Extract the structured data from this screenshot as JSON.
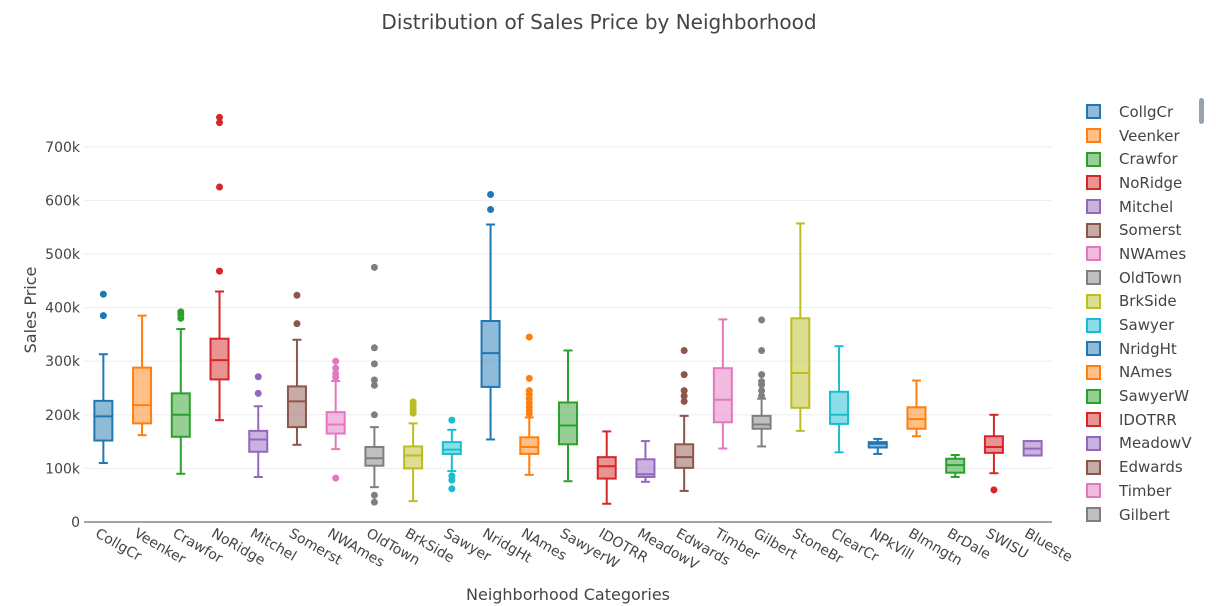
{
  "chart_data": {
    "type": "box",
    "title": "Distribution of Sales Price by Neighborhood",
    "xlabel": "Neighborhood Categories",
    "ylabel": "Sales Price",
    "ylim": [
      0,
      780000
    ],
    "yticks": [
      0,
      100000,
      200000,
      300000,
      400000,
      500000,
      600000,
      700000
    ],
    "ytick_labels": [
      "0",
      "100k",
      "200k",
      "300k",
      "400k",
      "500k",
      "600k",
      "700k"
    ],
    "grid": true,
    "legend_position": "right",
    "categories": [
      "CollgCr",
      "Veenker",
      "Crawfor",
      "NoRidge",
      "Mitchel",
      "Somerst",
      "NWAmes",
      "OldTown",
      "BrkSide",
      "Sawyer",
      "NridgHt",
      "NAmes",
      "SawyerW",
      "IDOTRR",
      "MeadowV",
      "Edwards",
      "Timber",
      "Gilbert",
      "StoneBr",
      "ClearCr",
      "NPkVill",
      "Blmngtn",
      "BrDale",
      "SWISU",
      "Blueste"
    ],
    "series": [
      {
        "name": "CollgCr",
        "color": "#1f77b4",
        "min": 110000,
        "q1": 152000,
        "median": 197000,
        "q3": 226000,
        "max": 313000,
        "outliers": [
          385000,
          425000
        ]
      },
      {
        "name": "Veenker",
        "color": "#ff7f0e",
        "min": 162000,
        "q1": 184000,
        "median": 218000,
        "q3": 288000,
        "max": 385000,
        "outliers": []
      },
      {
        "name": "Crawfor",
        "color": "#2ca02c",
        "min": 90000,
        "q1": 159000,
        "median": 200000,
        "q3": 240000,
        "max": 360000,
        "outliers": [
          380000,
          387000,
          392000
        ]
      },
      {
        "name": "NoRidge",
        "color": "#d62728",
        "min": 190000,
        "q1": 266000,
        "median": 302000,
        "q3": 342000,
        "max": 430000,
        "outliers": [
          468000,
          625000,
          745000,
          755000
        ]
      },
      {
        "name": "Mitchel",
        "color": "#9467bd",
        "min": 84000,
        "q1": 131000,
        "median": 154000,
        "q3": 170000,
        "max": 216000,
        "outliers": [
          240000,
          271000
        ]
      },
      {
        "name": "Somerst",
        "color": "#8c564b",
        "min": 144000,
        "q1": 177000,
        "median": 225000,
        "q3": 253000,
        "max": 340000,
        "outliers": [
          370000,
          423000
        ]
      },
      {
        "name": "NWAmes",
        "color": "#e377c2",
        "min": 136000,
        "q1": 165000,
        "median": 182000,
        "q3": 205000,
        "max": 263000,
        "outliers": [
          82000,
          270000,
          277000,
          287000,
          300000
        ]
      },
      {
        "name": "OldTown",
        "color": "#7f7f7f",
        "min": 65000,
        "q1": 105000,
        "median": 119000,
        "q3": 140000,
        "max": 177000,
        "outliers": [
          37000,
          50000,
          200000,
          255000,
          265000,
          295000,
          325000,
          475000
        ]
      },
      {
        "name": "BrkSide",
        "color": "#bcbd22",
        "min": 39000,
        "q1": 100000,
        "median": 124000,
        "q3": 141000,
        "max": 184000,
        "outliers": [
          203000,
          208000,
          213000,
          219000,
          224000
        ]
      },
      {
        "name": "Sawyer",
        "color": "#17becf",
        "min": 95000,
        "q1": 127000,
        "median": 135000,
        "q3": 149000,
        "max": 172000,
        "outliers": [
          62000,
          78000,
          86000,
          190000
        ]
      },
      {
        "name": "NridgHt",
        "color": "#1f77b4",
        "min": 154000,
        "q1": 252000,
        "median": 315000,
        "q3": 375000,
        "max": 555000,
        "outliers": [
          583000,
          611000
        ]
      },
      {
        "name": "NAmes",
        "color": "#ff7f0e",
        "min": 88000,
        "q1": 127000,
        "median": 140000,
        "q3": 158000,
        "max": 195000,
        "outliers": [
          202000,
          208000,
          215000,
          222000,
          230000,
          238000,
          245000,
          268000,
          345000
        ]
      },
      {
        "name": "SawyerW",
        "color": "#2ca02c",
        "min": 76000,
        "q1": 145000,
        "median": 180000,
        "q3": 223000,
        "max": 320000,
        "outliers": []
      },
      {
        "name": "IDOTRR",
        "color": "#d62728",
        "min": 34000,
        "q1": 81000,
        "median": 104000,
        "q3": 121000,
        "max": 169000,
        "outliers": []
      },
      {
        "name": "MeadowV",
        "color": "#9467bd",
        "min": 75000,
        "q1": 84000,
        "median": 89000,
        "q3": 117000,
        "max": 151000,
        "outliers": []
      },
      {
        "name": "Edwards",
        "color": "#8c564b",
        "min": 58000,
        "q1": 101000,
        "median": 121000,
        "q3": 145000,
        "max": 198000,
        "outliers": [
          225000,
          235000,
          245000,
          275000,
          320000
        ]
      },
      {
        "name": "Timber",
        "color": "#e377c2",
        "min": 137000,
        "q1": 186000,
        "median": 228000,
        "q3": 287000,
        "max": 378000,
        "outliers": []
      },
      {
        "name": "Gilbert",
        "color": "#7f7f7f",
        "min": 141000,
        "q1": 174000,
        "median": 182000,
        "q3": 198000,
        "max": 230000,
        "outliers": [
          235000,
          245000,
          256000,
          262000,
          275000,
          320000,
          377000
        ]
      },
      {
        "name": "StoneBr",
        "color": "#bcbd22",
        "min": 170000,
        "q1": 213000,
        "median": 278000,
        "q3": 380000,
        "max": 557000,
        "outliers": []
      },
      {
        "name": "ClearCr",
        "color": "#17becf",
        "min": 130000,
        "q1": 183000,
        "median": 200000,
        "q3": 243000,
        "max": 328000,
        "outliers": []
      },
      {
        "name": "NPkVill",
        "color": "#1f77b4",
        "min": 127000,
        "q1": 139000,
        "median": 146000,
        "q3": 149000,
        "max": 155000,
        "outliers": []
      },
      {
        "name": "Blmngtn",
        "color": "#ff7f0e",
        "min": 160000,
        "q1": 174000,
        "median": 192000,
        "q3": 214000,
        "max": 264000,
        "outliers": []
      },
      {
        "name": "BrDale",
        "color": "#2ca02c",
        "min": 84000,
        "q1": 92000,
        "median": 106000,
        "q3": 118000,
        "max": 125000,
        "outliers": []
      },
      {
        "name": "SWISU",
        "color": "#d62728",
        "min": 91000,
        "q1": 129000,
        "median": 140000,
        "q3": 160000,
        "max": 200000,
        "outliers": [
          60000
        ]
      },
      {
        "name": "Blueste",
        "color": "#9467bd",
        "min": 124000,
        "q1": 124000,
        "median": 137000,
        "q3": 151000,
        "max": 151000,
        "outliers": []
      }
    ]
  },
  "legend": {
    "visible_items": [
      "CollgCr",
      "Veenker",
      "Crawfor",
      "NoRidge",
      "Mitchel",
      "Somerst",
      "NWAmes",
      "OldTown",
      "BrkSide",
      "Sawyer",
      "NridgHt",
      "NAmes",
      "SawyerW",
      "IDOTRR",
      "MeadowV",
      "Edwards",
      "Timber",
      "Gilbert"
    ]
  }
}
